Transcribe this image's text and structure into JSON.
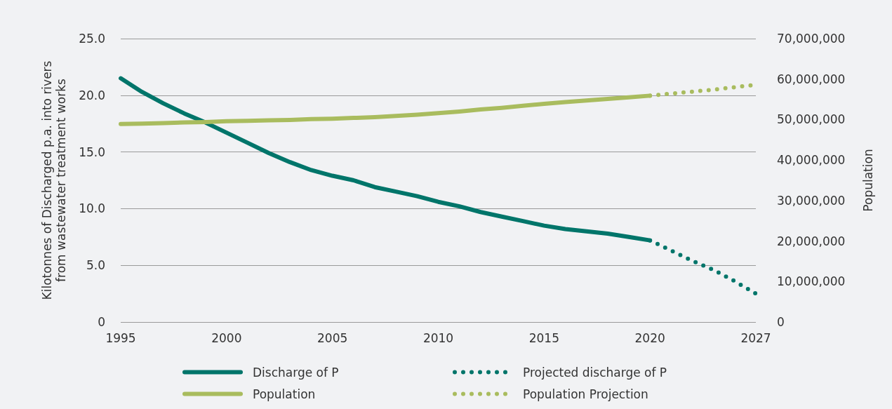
{
  "chart_data": {
    "type": "line",
    "ylabel": "Kilotonnes of Discharged p.a. into rivers\nfrom wastewater treatment works",
    "y2label": "Population",
    "categories": [
      "1995",
      null,
      null,
      null,
      null,
      "2000",
      null,
      null,
      null,
      null,
      "2005",
      null,
      null,
      null,
      null,
      "2010",
      null,
      null,
      null,
      null,
      "2015",
      null,
      null,
      null,
      null,
      "2020",
      null,
      null,
      null,
      null,
      "2027"
    ],
    "series": [
      {
        "name": "Discharge of P",
        "color": "#00756a",
        "line_style": "solid",
        "values": [
          21.5,
          20.3,
          19.3,
          18.4,
          17.6,
          16.7,
          15.8,
          14.9,
          14.1,
          13.4,
          12.9,
          12.5,
          11.9,
          11.5,
          11.1,
          10.6,
          10.2,
          9.7,
          9.3,
          8.9,
          8.5,
          8.2,
          8.0,
          7.8,
          7.5,
          7.2,
          null,
          null,
          null,
          null,
          null
        ]
      },
      {
        "name": "Projected discharge of P",
        "color": "#00756a",
        "line_style": "dotted",
        "values": [
          null,
          null,
          null,
          null,
          null,
          null,
          null,
          null,
          null,
          null,
          null,
          null,
          null,
          null,
          null,
          null,
          null,
          null,
          null,
          null,
          null,
          null,
          null,
          null,
          null,
          7.2,
          6.3,
          5.4,
          4.6,
          3.6,
          2.5
        ]
      },
      {
        "name": "Population",
        "color": "#a9bc5e",
        "line_style": "solid",
        "axis": "y2",
        "values": [
          48900000,
          49000000,
          49100000,
          49300000,
          49400000,
          49600000,
          49700000,
          49800000,
          49900000,
          50100000,
          50200000,
          50400000,
          50600000,
          50900000,
          51200000,
          51600000,
          52000000,
          52500000,
          52900000,
          53400000,
          53900000,
          54300000,
          54700000,
          55100000,
          55500000,
          55900000,
          null,
          null,
          null,
          null,
          null
        ]
      },
      {
        "name": "Population Projection",
        "color": "#a9bc5e",
        "line_style": "dotted",
        "axis": "y2",
        "values": [
          null,
          null,
          null,
          null,
          null,
          null,
          null,
          null,
          null,
          null,
          null,
          null,
          null,
          null,
          null,
          null,
          null,
          null,
          null,
          null,
          null,
          null,
          null,
          null,
          null,
          55900000,
          56400000,
          56900000,
          57400000,
          58000000,
          58600000
        ]
      }
    ],
    "ylim": [
      0,
      25
    ],
    "yticks": [
      0,
      {
        "value": 5,
        "label": "5.0"
      },
      {
        "value": 10,
        "label": "10.0"
      },
      {
        "value": 15,
        "label": "15.0"
      },
      {
        "value": 20,
        "label": "20.0"
      },
      {
        "value": 25,
        "label": "25.0"
      }
    ],
    "y2lim": [
      0,
      70000000
    ],
    "y2ticks": [
      0,
      {
        "value": 10000000,
        "label": "10,000,000"
      },
      {
        "value": 20000000,
        "label": "20,000,000"
      },
      {
        "value": 30000000,
        "label": "30,000,000"
      },
      {
        "value": 40000000,
        "label": "40,000,000"
      },
      {
        "value": 50000000,
        "label": "50,000,000"
      },
      {
        "value": 60000000,
        "label": "60,000,000"
      },
      {
        "value": 70000000,
        "label": "70,000,000"
      }
    ],
    "grid": "y",
    "legend": "bottom",
    "marker": "none"
  }
}
